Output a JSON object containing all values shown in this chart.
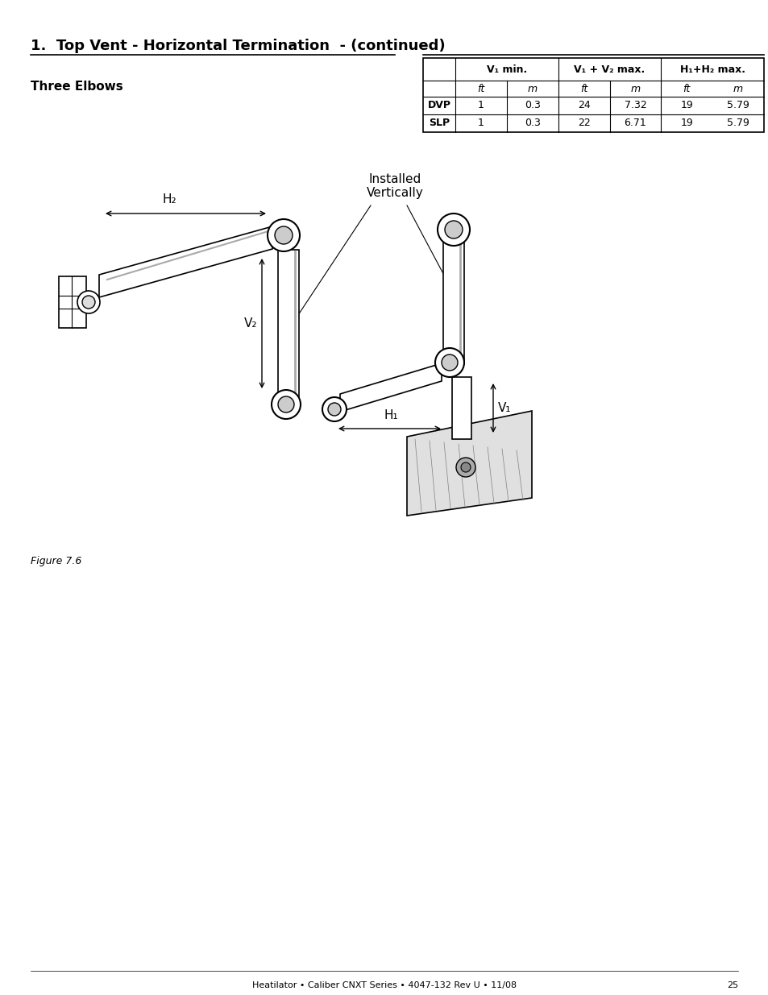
{
  "title": "1.  Top Vent - Horizontal Termination  - (continued)",
  "section_label": "Three Elbows",
  "table": {
    "col_headers": [
      "V₁ min.",
      "V₁ + V₂ max.",
      "H₁+H₂ max."
    ],
    "sub_headers": [
      "ft",
      "m",
      "ft",
      "m",
      "ft",
      "m"
    ],
    "row_labels": [
      "DVP",
      "SLP"
    ],
    "rows": [
      [
        1,
        0.3,
        24,
        7.32,
        19,
        5.79
      ],
      [
        1,
        0.3,
        22,
        6.71,
        19,
        5.79
      ]
    ]
  },
  "figure_label": "Figure 7.6",
  "footer": "Heatilator • Caliber CNXT Series • 4047-132 Rev U • 11/08",
  "page_number": "25",
  "bg_color": "#ffffff",
  "text_color": "#000000",
  "title_fontsize": 13,
  "section_fontsize": 11,
  "table_fontsize": 9,
  "footer_fontsize": 8
}
